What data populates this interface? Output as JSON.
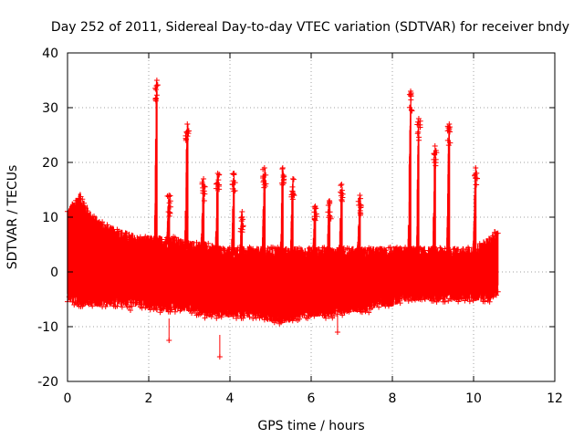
{
  "chart_data": {
    "type": "scatter",
    "title": "Day 252 of 2011, Sidereal Day-to-day VTEC variation (SDTVAR) for receiver bndy",
    "xlabel": "GPS time / hours",
    "ylabel": "SDTVAR / TECUs",
    "xlim": [
      0,
      12
    ],
    "ylim": [
      -20,
      40
    ],
    "xticks": [
      0,
      2,
      4,
      6,
      8,
      10,
      12
    ],
    "yticks": [
      -20,
      -10,
      0,
      10,
      20,
      30,
      40
    ],
    "grid": true,
    "marker": "+",
    "color": "#ff0000",
    "envelope": {
      "x": [
        0.0,
        0.3,
        0.6,
        1.0,
        1.4,
        1.8,
        2.2,
        2.6,
        3.0,
        3.4,
        3.8,
        4.2,
        4.6,
        5.0,
        5.4,
        5.8,
        6.2,
        6.6,
        7.0,
        7.4,
        7.6,
        8.0,
        8.4,
        8.8,
        9.2,
        9.6,
        10.0,
        10.4,
        10.6
      ],
      "upper": [
        10,
        13,
        9,
        7,
        6,
        5,
        5,
        5,
        4,
        4,
        3,
        3,
        3,
        3,
        3,
        3,
        3,
        3,
        3,
        3,
        3,
        3,
        3,
        3,
        3,
        3,
        3,
        5,
        7
      ],
      "lower": [
        -4,
        -5,
        -5,
        -5,
        -5,
        -5,
        -6,
        -6,
        -6,
        -7,
        -7,
        -7,
        -7,
        -8,
        -8,
        -7,
        -7,
        -7,
        -6,
        -6,
        -5,
        -5,
        -4,
        -4,
        -4,
        -4,
        -4,
        -4,
        -3
      ]
    },
    "spikes": [
      {
        "x": 2.2,
        "peak": 35
      },
      {
        "x": 2.5,
        "peak": 14
      },
      {
        "x": 2.95,
        "peak": 27
      },
      {
        "x": 3.35,
        "peak": 17
      },
      {
        "x": 3.7,
        "peak": 18
      },
      {
        "x": 4.1,
        "peak": 18
      },
      {
        "x": 4.3,
        "peak": 11
      },
      {
        "x": 4.85,
        "peak": 19
      },
      {
        "x": 5.3,
        "peak": 19
      },
      {
        "x": 5.55,
        "peak": 17
      },
      {
        "x": 6.1,
        "peak": 12
      },
      {
        "x": 6.45,
        "peak": 13
      },
      {
        "x": 6.75,
        "peak": 16
      },
      {
        "x": 7.2,
        "peak": 14
      },
      {
        "x": 8.45,
        "peak": 33
      },
      {
        "x": 8.65,
        "peak": 28
      },
      {
        "x": 9.05,
        "peak": 23
      },
      {
        "x": 9.4,
        "peak": 27
      },
      {
        "x": 10.05,
        "peak": 19
      }
    ],
    "outliers": [
      {
        "x": 2.5,
        "y": -12.5
      },
      {
        "x": 3.75,
        "y": -15.5
      },
      {
        "x": 6.65,
        "y": -11
      },
      {
        "x": 1.55,
        "y": -7
      }
    ]
  }
}
